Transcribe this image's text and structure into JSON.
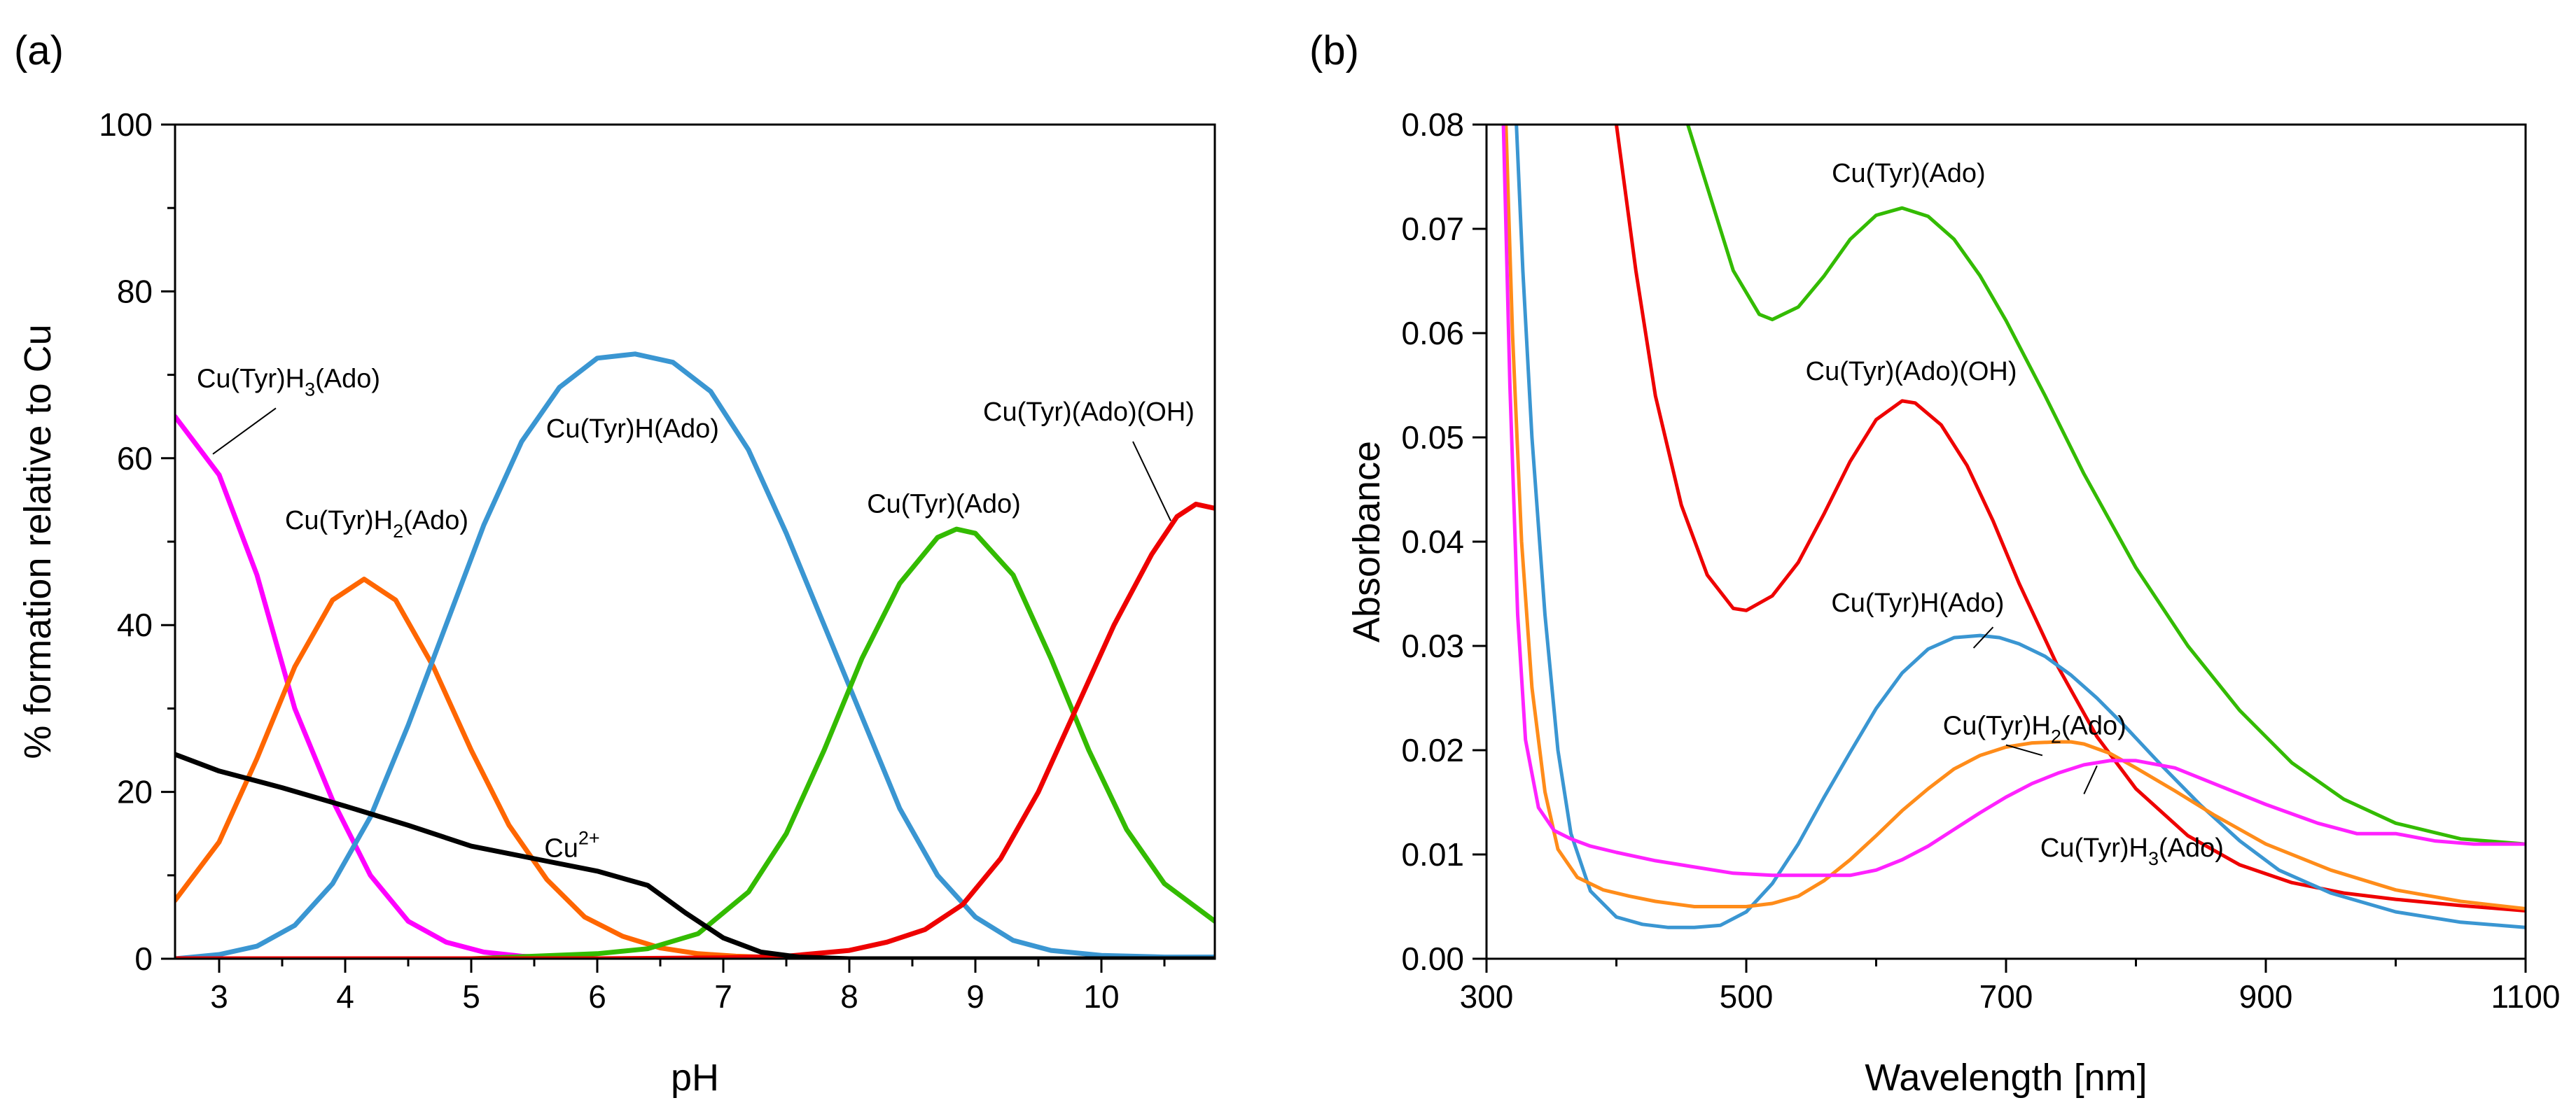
{
  "chart_data": [
    {
      "panel": "(a)",
      "type": "line",
      "xlabel": "pH",
      "ylabel": "% formation relative to Cu",
      "xlim": [
        2.65,
        10.9
      ],
      "ylim": [
        0,
        100
      ],
      "xticks": [
        "3",
        "4",
        "5",
        "6",
        "7",
        "8",
        "9",
        "10"
      ],
      "yticks": [
        "0",
        "20",
        "40",
        "60",
        "80",
        "100"
      ],
      "series": [
        {
          "name": "Cu(Tyr)H3(Ado)",
          "color": "#ff00ff",
          "x": [
            2.65,
            3.0,
            3.3,
            3.6,
            3.9,
            4.2,
            4.5,
            4.8,
            5.1,
            5.4,
            5.7,
            6.0,
            7.0,
            8.0,
            9.0,
            10.0,
            10.9
          ],
          "y": [
            65.0,
            58.0,
            46.0,
            30.0,
            19.0,
            10.0,
            4.5,
            2.0,
            0.8,
            0.3,
            0.1,
            0,
            0,
            0,
            0,
            0,
            0
          ]
        },
        {
          "name": "Cu(Tyr)H2(Ado)",
          "color": "#ff6600",
          "x": [
            2.65,
            3.0,
            3.3,
            3.6,
            3.9,
            4.15,
            4.4,
            4.7,
            5.0,
            5.3,
            5.6,
            5.9,
            6.2,
            6.5,
            6.8,
            7.1,
            7.5,
            8.0,
            9.0,
            10.0,
            10.9
          ],
          "y": [
            7.0,
            14.0,
            24.0,
            35.0,
            43.0,
            45.5,
            43.0,
            35.0,
            25.0,
            16.0,
            9.5,
            5.0,
            2.7,
            1.3,
            0.6,
            0.3,
            0.1,
            0,
            0,
            0,
            0
          ]
        },
        {
          "name": "Cu(Tyr)H(Ado)",
          "color": "#3a96d2",
          "x": [
            2.65,
            3.0,
            3.3,
            3.6,
            3.9,
            4.2,
            4.5,
            4.8,
            5.1,
            5.4,
            5.7,
            6.0,
            6.3,
            6.6,
            6.9,
            7.2,
            7.5,
            7.8,
            8.1,
            8.4,
            8.7,
            9.0,
            9.3,
            9.6,
            10.0,
            10.5,
            10.9
          ],
          "y": [
            0,
            0.5,
            1.5,
            4.0,
            9.0,
            17.0,
            28.0,
            40.0,
            52.0,
            62.0,
            68.5,
            72.0,
            72.5,
            71.5,
            68.0,
            61.0,
            51.0,
            40.0,
            29.0,
            18.0,
            10.0,
            5.0,
            2.2,
            1.0,
            0.4,
            0.2,
            0.2
          ]
        },
        {
          "name": "Cu(Tyr)(Ado)",
          "color": "#33bb00",
          "x": [
            2.65,
            4.0,
            5.0,
            5.5,
            6.0,
            6.4,
            6.8,
            7.2,
            7.5,
            7.8,
            8.1,
            8.4,
            8.7,
            8.85,
            9.0,
            9.3,
            9.6,
            9.9,
            10.2,
            10.5,
            10.9
          ],
          "y": [
            0,
            0,
            0,
            0.3,
            0.6,
            1.2,
            3.0,
            8.0,
            15.0,
            25.0,
            36.0,
            45.0,
            50.5,
            51.5,
            51.0,
            46.0,
            36.0,
            25.0,
            15.5,
            9.0,
            4.5
          ]
        },
        {
          "name": "Cu(Tyr)(Ado)(OH)",
          "color": "#ee0000",
          "x": [
            2.65,
            6.0,
            7.0,
            7.5,
            8.0,
            8.3,
            8.6,
            8.9,
            9.2,
            9.5,
            9.8,
            10.1,
            10.4,
            10.6,
            10.75,
            10.9
          ],
          "y": [
            0,
            0,
            0.1,
            0.3,
            1.0,
            2.0,
            3.5,
            6.5,
            12.0,
            20.0,
            30.0,
            40.0,
            48.5,
            53.0,
            54.5,
            54.0
          ]
        },
        {
          "name": "Cu2+",
          "color": "#000000",
          "x": [
            2.65,
            3.0,
            3.5,
            4.0,
            4.5,
            5.0,
            5.5,
            6.0,
            6.4,
            6.7,
            7.0,
            7.3,
            7.6,
            8.0,
            9.0,
            10.0,
            10.9
          ],
          "y": [
            24.5,
            22.5,
            20.5,
            18.3,
            16.0,
            13.5,
            12.0,
            10.5,
            8.8,
            5.5,
            2.5,
            0.8,
            0.2,
            0,
            0,
            0,
            0
          ]
        }
      ],
      "annotations": [
        {
          "text": "Cu(Tyr)H",
          "sub": "3",
          "tail": "(Ado)",
          "series": "Cu(Tyr)H3(Ado)",
          "at": [
            3.55,
            68.5
          ],
          "leader": [
            [
              3.45,
              66.0
            ],
            [
              2.95,
              60.5
            ]
          ]
        },
        {
          "text": "Cu(Tyr)H",
          "sub": "2",
          "tail": "(Ado)",
          "series": "Cu(Tyr)H2(Ado)",
          "at": [
            4.25,
            51.5
          ]
        },
        {
          "text": "Cu(Tyr)H(Ado)",
          "series": "Cu(Tyr)H(Ado)",
          "at": [
            6.28,
            62.5
          ]
        },
        {
          "text": "Cu(Tyr)(Ado)",
          "series": "Cu(Tyr)(Ado)",
          "at": [
            8.75,
            53.5
          ]
        },
        {
          "text": "Cu(Tyr)(Ado)(OH)",
          "series": "Cu(Tyr)(Ado)(OH)",
          "at": [
            9.9,
            64.5
          ],
          "leader": [
            [
              10.25,
              62.0
            ],
            [
              10.55,
              52.5
            ]
          ]
        },
        {
          "text": "Cu",
          "sup": "2+",
          "series": "Cu2+",
          "at": [
            5.8,
            12.2
          ]
        }
      ]
    },
    {
      "panel": "(b)",
      "type": "line",
      "xlabel": "Wavelength [nm]",
      "ylabel": "Absorbance",
      "xlim": [
        300,
        1100
      ],
      "ylim": [
        0,
        0.08
      ],
      "xticks": [
        "300",
        "500",
        "700",
        "900",
        "1100"
      ],
      "yticks": [
        "0.00",
        "0.01",
        "0.02",
        "0.03",
        "0.04",
        "0.05",
        "0.06",
        "0.07",
        "0.08"
      ],
      "series": [
        {
          "name": "Cu(Tyr)(Ado)",
          "color": "#33bb00",
          "x": [
            455,
            470,
            490,
            510,
            520,
            540,
            560,
            580,
            600,
            620,
            640,
            660,
            680,
            700,
            730,
            760,
            800,
            840,
            880,
            920,
            960,
            1000,
            1050,
            1100
          ],
          "y": [
            0.08,
            0.074,
            0.066,
            0.0618,
            0.0613,
            0.0625,
            0.0655,
            0.069,
            0.0713,
            0.072,
            0.0712,
            0.069,
            0.0655,
            0.0612,
            0.054,
            0.0465,
            0.0375,
            0.03,
            0.0238,
            0.0188,
            0.0153,
            0.013,
            0.0115,
            0.011
          ]
        },
        {
          "name": "Cu(Tyr)(Ado)(OH)",
          "color": "#ee0000",
          "x": [
            400,
            415,
            430,
            450,
            470,
            490,
            500,
            520,
            540,
            560,
            580,
            600,
            620,
            630,
            650,
            670,
            690,
            710,
            740,
            770,
            800,
            840,
            880,
            920,
            960,
            1000,
            1050,
            1100
          ],
          "y": [
            0.08,
            0.066,
            0.054,
            0.0435,
            0.0368,
            0.0336,
            0.0334,
            0.0348,
            0.038,
            0.0427,
            0.0477,
            0.0517,
            0.0535,
            0.0533,
            0.0512,
            0.0473,
            0.042,
            0.036,
            0.028,
            0.0213,
            0.0163,
            0.0118,
            0.009,
            0.0073,
            0.0063,
            0.0057,
            0.0051,
            0.0046
          ]
        },
        {
          "name": "Cu(Tyr)H(Ado)",
          "color": "#3a96d2",
          "x": [
            323,
            328,
            335,
            345,
            355,
            365,
            380,
            400,
            420,
            440,
            460,
            480,
            500,
            520,
            540,
            560,
            580,
            600,
            620,
            640,
            660,
            680,
            695,
            710,
            730,
            750,
            770,
            790,
            820,
            850,
            880,
            910,
            950,
            1000,
            1050,
            1100
          ],
          "y": [
            0.08,
            0.066,
            0.05,
            0.033,
            0.02,
            0.012,
            0.0065,
            0.004,
            0.0033,
            0.003,
            0.003,
            0.0032,
            0.0045,
            0.0072,
            0.011,
            0.0155,
            0.0198,
            0.024,
            0.0274,
            0.0297,
            0.0308,
            0.031,
            0.0308,
            0.0302,
            0.029,
            0.0272,
            0.025,
            0.0225,
            0.0185,
            0.0147,
            0.0113,
            0.0085,
            0.0063,
            0.0045,
            0.0035,
            0.003
          ]
        },
        {
          "name": "Cu(Tyr)H2(Ado)",
          "color": "#ff8c1a",
          "x": [
            315,
            320,
            327,
            335,
            345,
            355,
            370,
            390,
            410,
            430,
            460,
            500,
            520,
            540,
            560,
            580,
            600,
            620,
            640,
            660,
            680,
            700,
            720,
            740,
            750,
            760,
            780,
            800,
            830,
            860,
            900,
            950,
            1000,
            1050,
            1100
          ],
          "y": [
            0.08,
            0.06,
            0.04,
            0.026,
            0.016,
            0.0105,
            0.0078,
            0.0066,
            0.006,
            0.0055,
            0.005,
            0.005,
            0.0053,
            0.006,
            0.0075,
            0.0095,
            0.0118,
            0.0142,
            0.0163,
            0.0182,
            0.0195,
            0.0203,
            0.0207,
            0.0208,
            0.0208,
            0.0206,
            0.0197,
            0.0183,
            0.0161,
            0.0138,
            0.011,
            0.0085,
            0.0066,
            0.0055,
            0.0048
          ]
        },
        {
          "name": "Cu(Tyr)H3(Ado)",
          "color": "#ff22ff",
          "x": [
            313,
            318,
            324,
            330,
            340,
            352,
            365,
            380,
            400,
            430,
            460,
            490,
            520,
            550,
            580,
            600,
            620,
            640,
            660,
            680,
            700,
            720,
            740,
            760,
            780,
            800,
            830,
            860,
            900,
            940,
            970,
            1000,
            1030,
            1060,
            1100
          ],
          "y": [
            0.08,
            0.055,
            0.033,
            0.021,
            0.0145,
            0.0123,
            0.0115,
            0.0108,
            0.0102,
            0.0094,
            0.0088,
            0.0082,
            0.008,
            0.008,
            0.008,
            0.0085,
            0.0095,
            0.0108,
            0.0124,
            0.014,
            0.0155,
            0.0168,
            0.0178,
            0.0186,
            0.019,
            0.019,
            0.0183,
            0.0168,
            0.0148,
            0.013,
            0.012,
            0.012,
            0.0113,
            0.011,
            0.011
          ]
        }
      ],
      "annotations": [
        {
          "text": "Cu(Tyr)(Ado)",
          "series": "Cu(Tyr)(Ado)",
          "at": [
            625,
            0.0745
          ]
        },
        {
          "text": "Cu(Tyr)(Ado)(OH)",
          "series": "Cu(Tyr)(Ado)(OH)",
          "at": [
            627,
            0.0555
          ]
        },
        {
          "text": "Cu(Tyr)H(Ado)",
          "series": "Cu(Tyr)H(Ado)",
          "at": [
            632,
            0.0333
          ],
          "leader": [
            [
              690,
              0.0318
            ],
            [
              675,
              0.0298
            ]
          ]
        },
        {
          "text": "Cu(Tyr)H",
          "sub": "2",
          "tail": "(Ado)",
          "series": "Cu(Tyr)H2(Ado)",
          "at": [
            722,
            0.0215
          ],
          "leader": [
            [
              700,
              0.0205
            ],
            [
              728,
              0.0195
            ]
          ]
        },
        {
          "text": "Cu(Tyr)H",
          "sub": "3",
          "tail": "(Ado)",
          "series": "Cu(Tyr)H3(Ado)",
          "at": [
            797,
            0.0098
          ],
          "leader": [
            [
              760,
              0.0158
            ],
            [
              770,
              0.0185
            ]
          ]
        }
      ]
    }
  ]
}
